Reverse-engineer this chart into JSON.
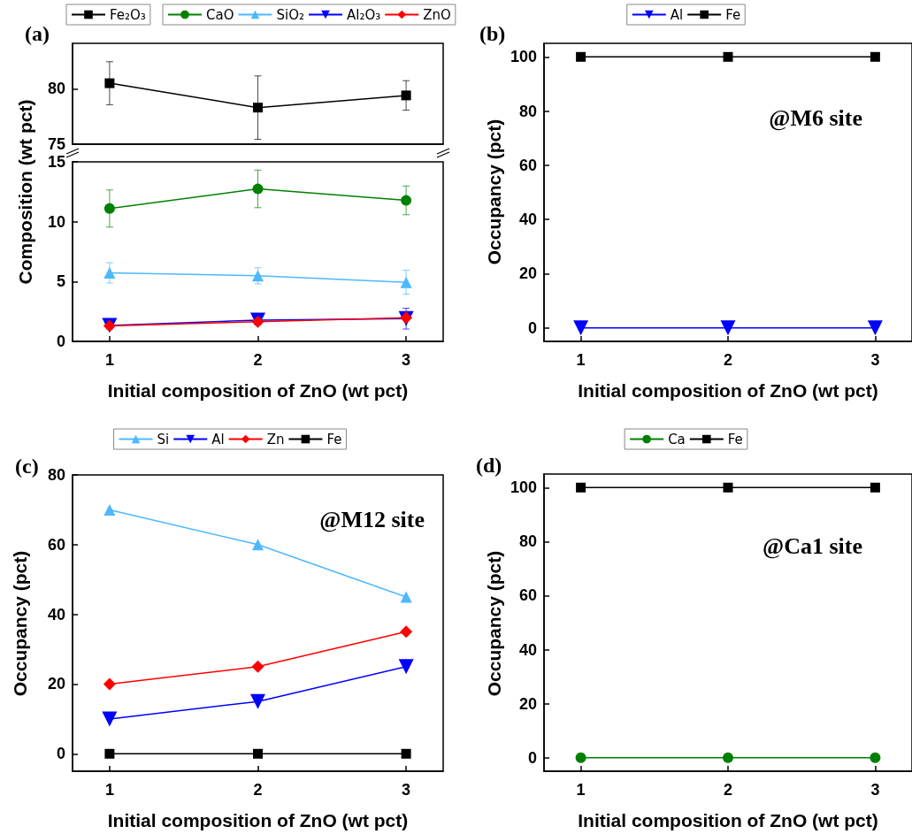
{
  "chart_data": [
    {
      "type": "line",
      "annotations": [
        "(a)"
      ],
      "x": [
        1,
        2,
        3
      ],
      "xlim": [
        0.75,
        3.25
      ],
      "xticks": [
        1,
        2,
        3
      ],
      "ylim": [
        75,
        84.1
      ],
      "yticks": [
        75,
        80
      ],
      "tick_labels": "y",
      "legend": "top",
      "series": [
        {
          "name": "Fe₂O₃",
          "color": "#000000",
          "marker": "square",
          "values": [
            80.5,
            78.3,
            79.4
          ],
          "errors": [
            1.94,
            2.86,
            1.33
          ]
        }
      ]
    },
    {
      "type": "line",
      "xlabel": "Initial composition of ZnO (wt pct)",
      "ylabel": "Composition (wt pct)",
      "x": [
        1,
        2,
        3
      ],
      "xlim": [
        0.75,
        3.25
      ],
      "xticks": [
        1,
        2,
        3
      ],
      "ylim": [
        0,
        15
      ],
      "yticks": [
        0,
        5,
        10,
        15
      ],
      "legend": "top",
      "series": [
        {
          "name": "CaO",
          "color": "#008000",
          "marker": "circle",
          "values": [
            11.1,
            12.74,
            11.78
          ],
          "errors": [
            1.55,
            1.57,
            1.2
          ]
        },
        {
          "name": "SiO₂",
          "color": "#4db8ff",
          "marker": "triangle",
          "values": [
            5.73,
            5.48,
            4.94
          ],
          "errors": [
            0.85,
            0.67,
            1.0
          ]
        },
        {
          "name": "Al₂O₃",
          "color": "#0000ff",
          "marker": "triangle_down",
          "values": [
            1.33,
            1.78,
            1.9
          ],
          "errors": [
            0.3,
            0.4,
            0.87
          ]
        },
        {
          "name": "ZnO",
          "color": "#ff0000",
          "marker": "diamond",
          "values": [
            1.3,
            1.65,
            1.98
          ],
          "errors": [
            0.2,
            0.2,
            0.2
          ]
        }
      ]
    },
    {
      "type": "line",
      "annotations": [
        "(b)",
        "@M6 site"
      ],
      "xlabel": "Initial composition of ZnO (wt pct)",
      "ylabel": "Occupancy (pct)",
      "x": [
        1,
        2,
        3
      ],
      "xlim": [
        0.75,
        3.25
      ],
      "xticks": [
        1,
        2,
        3
      ],
      "ylim": [
        -5,
        105
      ],
      "yticks": [
        0,
        20,
        40,
        60,
        80,
        100
      ],
      "legend": "top",
      "series": [
        {
          "name": "Al",
          "color": "#0000ff",
          "marker": "triangle_down",
          "values": [
            0,
            0,
            0
          ]
        },
        {
          "name": "Fe",
          "color": "#000000",
          "marker": "square",
          "values": [
            100,
            100,
            100
          ]
        }
      ]
    },
    {
      "type": "line",
      "annotations": [
        "(c)",
        "@M12 site"
      ],
      "xlabel": "Initial composition of ZnO (wt pct)",
      "ylabel": "Occupancy (pct)",
      "x": [
        1,
        2,
        3
      ],
      "xlim": [
        0.75,
        3.25
      ],
      "xticks": [
        1,
        2,
        3
      ],
      "ylim": [
        -5,
        80
      ],
      "yticks": [
        0,
        20,
        40,
        60,
        80
      ],
      "legend": "top",
      "series": [
        {
          "name": "Si",
          "color": "#4db8ff",
          "marker": "triangle",
          "values": [
            70,
            60,
            45
          ]
        },
        {
          "name": "Al",
          "color": "#0000ff",
          "marker": "triangle_down",
          "values": [
            10,
            15,
            25
          ]
        },
        {
          "name": "Zn",
          "color": "#ff0000",
          "marker": "diamond",
          "values": [
            20,
            25,
            35
          ]
        },
        {
          "name": "Fe",
          "color": "#000000",
          "marker": "square",
          "values": [
            0,
            0,
            0
          ]
        }
      ]
    },
    {
      "type": "line",
      "annotations": [
        "(d)",
        "@Ca1 site"
      ],
      "xlabel": "Initial composition of ZnO (wt pct)",
      "ylabel": "Occupancy (pct)",
      "x": [
        1,
        2,
        3
      ],
      "xlim": [
        0.75,
        3.25
      ],
      "xticks": [
        1,
        2,
        3
      ],
      "ylim": [
        -5,
        105
      ],
      "yticks": [
        0,
        20,
        40,
        60,
        80,
        100
      ],
      "legend": "top",
      "series": [
        {
          "name": "Ca",
          "color": "#008000",
          "marker": "circle",
          "values": [
            0,
            0,
            0
          ]
        },
        {
          "name": "Fe",
          "color": "#000000",
          "marker": "square",
          "values": [
            100,
            100,
            100
          ]
        }
      ]
    }
  ]
}
